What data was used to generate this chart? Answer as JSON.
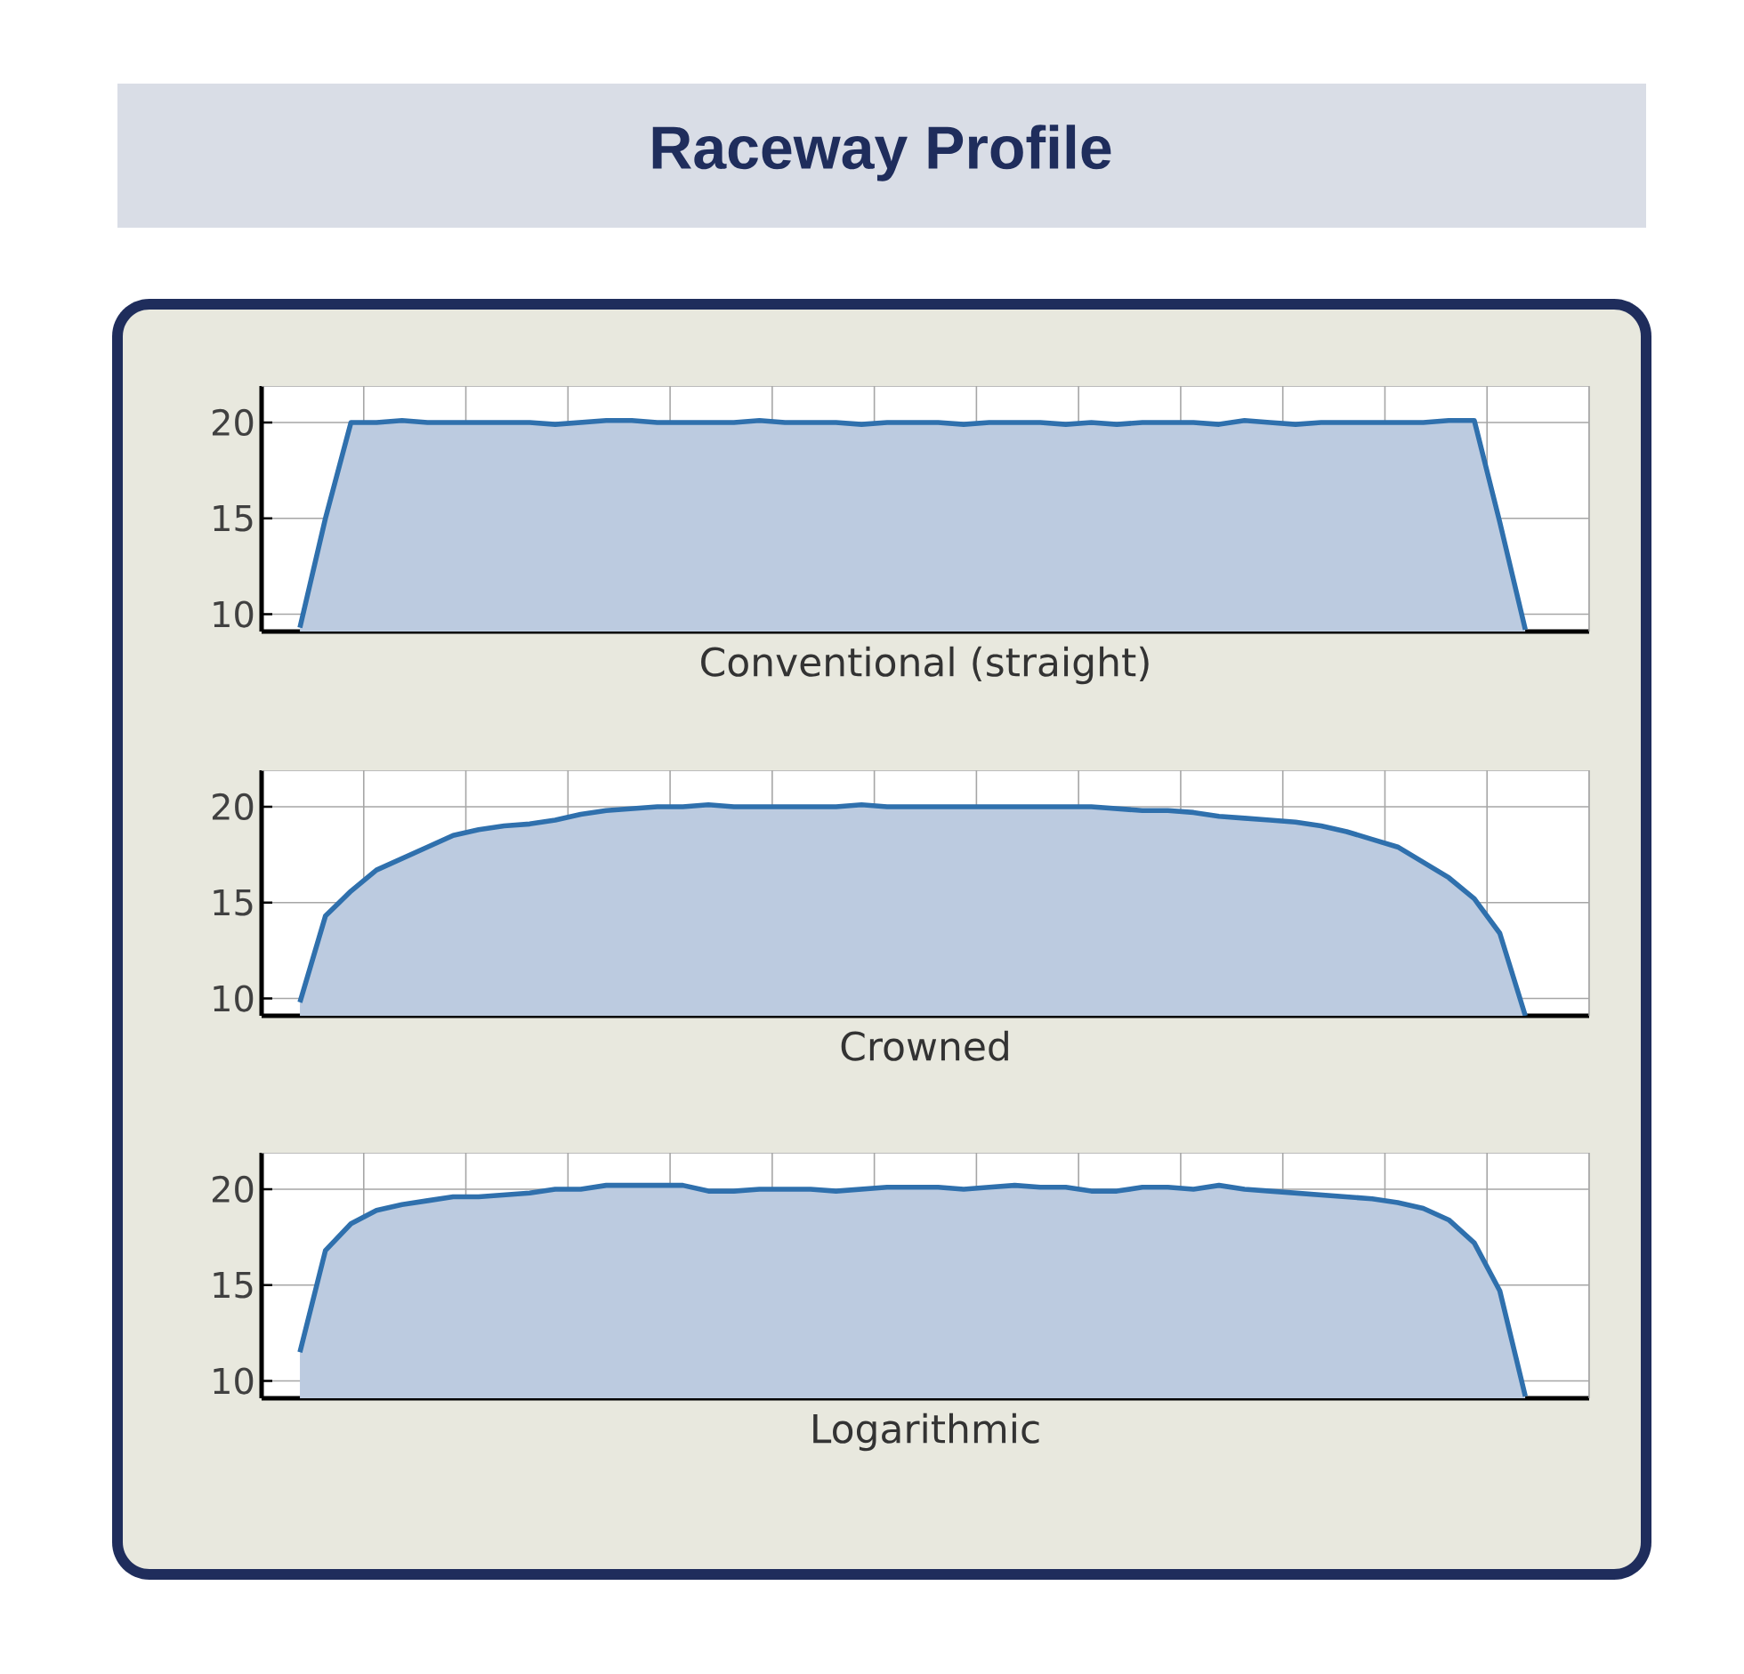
{
  "chart_data": [
    {
      "type": "area",
      "title": "Raceway Profile",
      "xlabel": "Conventional (straight)",
      "color": "#bccbe0",
      "categories": [
        null,
        null,
        null,
        null,
        null,
        null,
        null,
        null,
        null,
        null,
        null,
        null,
        null,
        null,
        null,
        null,
        null,
        null,
        null,
        null,
        null,
        null,
        null,
        null,
        null,
        null,
        null,
        null,
        null,
        null,
        null,
        null,
        null,
        null,
        null,
        null,
        null,
        null,
        null,
        null,
        null,
        null,
        null,
        null,
        null,
        null,
        null,
        null,
        null,
        null,
        null,
        null
      ],
      "values": [
        null,
        9.3,
        15,
        20,
        20,
        20.1,
        20,
        20,
        20,
        20,
        20,
        19.9,
        20,
        20.1,
        20.1,
        20,
        20,
        20,
        20,
        20.1,
        20,
        20,
        20,
        19.9,
        20,
        20,
        20,
        19.9,
        20,
        20,
        20,
        19.9,
        20,
        19.9,
        20,
        20,
        20,
        19.9,
        20.1,
        20,
        19.9,
        20,
        20,
        20,
        20,
        20,
        20.1,
        20.1,
        14.8,
        9.2,
        null,
        null
      ],
      "ylim": [
        9.1,
        21.9
      ],
      "yticks": [
        10,
        15,
        20
      ],
      "grid": true,
      "tick_labels": "y"
    },
    {
      "type": "area",
      "xlabel": "Crowned",
      "color": "#bccbe0",
      "categories": [
        null,
        null,
        null,
        null,
        null,
        null,
        null,
        null,
        null,
        null,
        null,
        null,
        null,
        null,
        null,
        null,
        null,
        null,
        null,
        null,
        null,
        null,
        null,
        null,
        null,
        null,
        null,
        null,
        null,
        null,
        null,
        null,
        null,
        null,
        null,
        null,
        null,
        null,
        null,
        null,
        null,
        null,
        null,
        null,
        null,
        null,
        null,
        null,
        null,
        null,
        null,
        null
      ],
      "values": [
        null,
        9.8,
        14.3,
        15.6,
        16.7,
        17.3,
        17.9,
        18.5,
        18.8,
        19,
        19.1,
        19.3,
        19.6,
        19.8,
        19.9,
        20,
        20,
        20.1,
        20,
        20,
        20,
        20,
        20,
        20.1,
        20,
        20,
        20,
        20,
        20,
        20,
        20,
        20,
        20,
        19.9,
        19.8,
        19.8,
        19.7,
        19.5,
        19.4,
        19.3,
        19.2,
        19,
        18.7,
        18.3,
        17.9,
        17.1,
        16.3,
        15.2,
        13.4,
        9.1,
        null,
        null
      ],
      "ylim": [
        9.1,
        21.9
      ],
      "yticks": [
        10,
        15,
        20
      ],
      "grid": true,
      "tick_labels": "y"
    },
    {
      "type": "area",
      "xlabel": "Logarithmic",
      "color": "#bccbe0",
      "categories": [
        null,
        null,
        null,
        null,
        null,
        null,
        null,
        null,
        null,
        null,
        null,
        null,
        null,
        null,
        null,
        null,
        null,
        null,
        null,
        null,
        null,
        null,
        null,
        null,
        null,
        null,
        null,
        null,
        null,
        null,
        null,
        null,
        null,
        null,
        null,
        null,
        null,
        null,
        null,
        null,
        null,
        null,
        null,
        null,
        null,
        null,
        null,
        null,
        null,
        null,
        null,
        null
      ],
      "values": [
        null,
        11.5,
        16.8,
        18.2,
        18.9,
        19.2,
        19.4,
        19.6,
        19.6,
        19.7,
        19.8,
        20,
        20,
        20.2,
        20.2,
        20.2,
        20.2,
        19.9,
        19.9,
        20,
        20,
        20,
        19.9,
        20,
        20.1,
        20.1,
        20.1,
        20,
        20.1,
        20.2,
        20.1,
        20.1,
        19.9,
        19.9,
        20.1,
        20.1,
        20,
        20.2,
        20,
        19.9,
        19.8,
        19.7,
        19.6,
        19.5,
        19.3,
        19,
        18.4,
        17.2,
        14.7,
        9.2,
        null,
        null
      ],
      "ylim": [
        9.1,
        21.9
      ],
      "yticks": [
        10,
        15,
        20
      ],
      "grid": true,
      "tick_labels": "y"
    }
  ]
}
